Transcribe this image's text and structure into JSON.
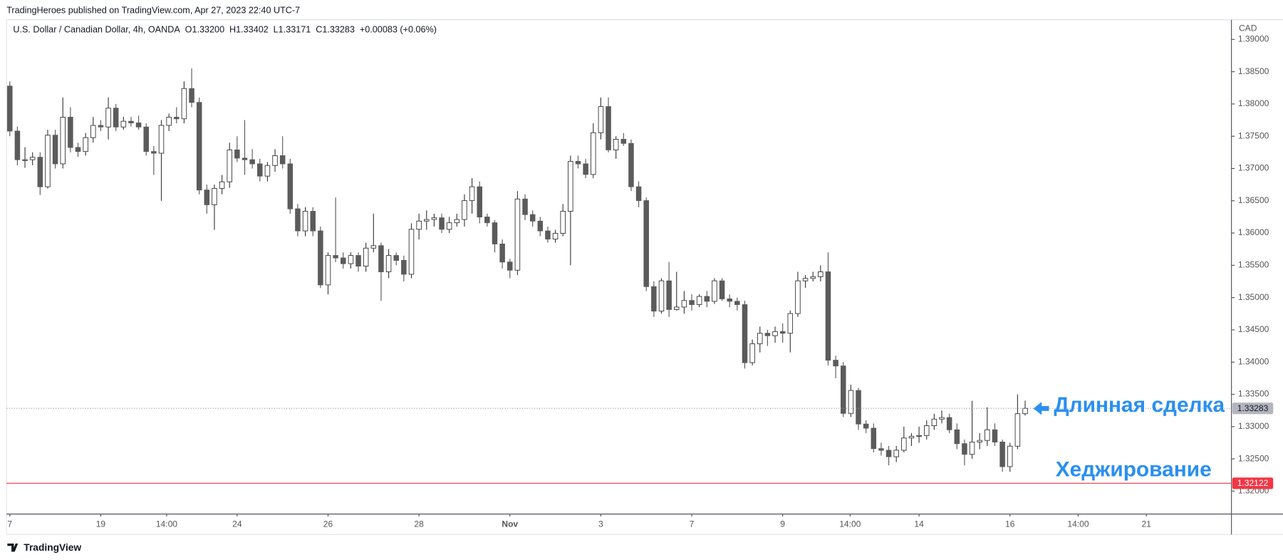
{
  "chart_data": {
    "type": "candlestick",
    "header": "TradingHeroes published on TradingView.com, Apr 27, 2023 22:40 UTC-7",
    "title": "U.S. Dollar / Canadian Dollar, 4h, OANDA",
    "ohlc_labels": {
      "open": "O1.33200",
      "high": "H1.33402",
      "low": "L1.33171",
      "close": "C1.33283",
      "change": "+0.00083 (+0.06%)"
    },
    "y_axis_label": "CAD",
    "footer": "TradingView",
    "up_color": "#ffffff",
    "down_color": "#5b5b5b",
    "edge_color": "#3a3a3a",
    "open": [
      1.38277,
      1.3758,
      1.37136,
      1.37136,
      1.37174,
      1.36717,
      1.37516,
      1.37072,
      1.37795,
      1.37326,
      1.37263,
      1.37478,
      1.37668,
      1.37643,
      1.37935,
      1.37643,
      1.37732,
      1.37706,
      1.37643,
      1.37263,
      1.37237,
      1.37668,
      1.37795,
      1.3777,
      1.38239,
      1.38024,
      1.36667,
      1.36438,
      1.36692,
      1.36793,
      1.37288,
      1.37161,
      1.37136,
      1.37072,
      1.36882,
      1.37047,
      1.37199,
      1.37072,
      1.36375,
      1.36033,
      1.36337,
      1.36033,
      1.35196,
      1.35652,
      1.35614,
      1.35525,
      1.35652,
      1.35487,
      1.35766,
      1.35804,
      1.35399,
      1.35652,
      1.35576,
      1.35361,
      1.36058,
      1.36185,
      1.3621,
      1.36236,
      1.36058,
      1.36159,
      1.3621,
      1.36502,
      1.36717,
      1.36248,
      1.36159,
      1.3583,
      1.35551,
      1.35424,
      1.36527,
      1.36286,
      1.36185,
      1.36033,
      1.35906,
      1.35995,
      1.36337,
      1.37111,
      1.37072,
      1.36908,
      1.37554,
      1.3796,
      1.37288,
      1.37453,
      1.37389,
      1.36717,
      1.36502,
      1.3517,
      1.3479,
      1.35259,
      1.34815,
      1.34853,
      1.34955,
      1.34891,
      1.35018,
      1.34942,
      1.35259,
      1.3498,
      1.34942,
      1.34891,
      1.33991,
      1.34283,
      1.34447,
      1.34409,
      1.34473,
      1.34447,
      1.34752,
      1.35259,
      1.35297,
      1.35323,
      1.35399,
      1.34029,
      1.3394,
      1.33205,
      1.3356,
      1.3304,
      1.32976,
      1.32659,
      1.32634,
      1.32533,
      1.32634,
      1.32824,
      1.3285,
      1.32862,
      1.33014,
      1.33116,
      1.33141,
      1.32951,
      1.32736,
      1.32571,
      1.32761,
      1.32786,
      1.32951,
      1.32761,
      1.3238,
      1.32697,
      1.332
    ],
    "high": [
      1.3835,
      1.3765,
      1.3733,
      1.3725,
      1.3725,
      1.376,
      1.376,
      1.381,
      1.3795,
      1.374,
      1.3755,
      1.378,
      1.3775,
      1.381,
      1.38,
      1.378,
      1.378,
      1.3782,
      1.377,
      1.3735,
      1.3775,
      1.3785,
      1.3795,
      1.3835,
      1.3855,
      1.381,
      1.3675,
      1.3675,
      1.369,
      1.374,
      1.375,
      1.3775,
      1.373,
      1.3715,
      1.371,
      1.373,
      1.375,
      1.3715,
      1.3645,
      1.364,
      1.364,
      1.361,
      1.357,
      1.3655,
      1.357,
      1.357,
      1.357,
      1.3585,
      1.363,
      1.3585,
      1.3575,
      1.357,
      1.3565,
      1.3615,
      1.363,
      1.3635,
      1.363,
      1.363,
      1.3625,
      1.363,
      1.366,
      1.3685,
      1.368,
      1.363,
      1.362,
      1.359,
      1.356,
      1.3665,
      1.366,
      1.3635,
      1.3625,
      1.361,
      1.3605,
      1.3645,
      1.372,
      1.372,
      1.3715,
      1.377,
      1.381,
      1.381,
      1.375,
      1.3755,
      1.3745,
      1.368,
      1.3655,
      1.3525,
      1.353,
      1.3555,
      1.354,
      1.351,
      1.3505,
      1.3505,
      1.351,
      1.353,
      1.353,
      1.3505,
      1.35,
      1.3495,
      1.3435,
      1.3455,
      1.345,
      1.3455,
      1.346,
      1.348,
      1.354,
      1.3535,
      1.354,
      1.355,
      1.357,
      1.341,
      1.34,
      1.3365,
      1.336,
      1.331,
      1.3305,
      1.3275,
      1.327,
      1.327,
      1.33,
      1.329,
      1.33,
      1.331,
      1.332,
      1.3325,
      1.332,
      1.3305,
      1.328,
      1.334,
      1.329,
      1.333,
      1.3305,
      1.328,
      1.3275,
      1.335,
      1.33402
    ],
    "low": [
      1.375,
      1.3705,
      1.3701,
      1.3705,
      1.3659,
      1.3669,
      1.37,
      1.37,
      1.3725,
      1.3718,
      1.372,
      1.374,
      1.3758,
      1.3745,
      1.3758,
      1.376,
      1.3765,
      1.376,
      1.372,
      1.369,
      1.365,
      1.3758,
      1.377,
      1.377,
      1.3795,
      1.366,
      1.363,
      1.3605,
      1.366,
      1.367,
      1.371,
      1.369,
      1.37,
      1.368,
      1.368,
      1.3695,
      1.37,
      1.363,
      1.3595,
      1.3595,
      1.3595,
      1.3515,
      1.3505,
      1.3555,
      1.3545,
      1.3545,
      1.354,
      1.354,
      1.357,
      1.3495,
      1.353,
      1.355,
      1.3525,
      1.353,
      1.359,
      1.3605,
      1.361,
      1.36,
      1.36,
      1.361,
      1.361,
      1.363,
      1.3615,
      1.361,
      1.357,
      1.3545,
      1.353,
      1.3535,
      1.362,
      1.361,
      1.3595,
      1.3585,
      1.3585,
      1.3595,
      1.355,
      1.37,
      1.3685,
      1.3685,
      1.3745,
      1.3725,
      1.3715,
      1.3735,
      1.3665,
      1.364,
      1.351,
      1.347,
      1.3475,
      1.347,
      1.348,
      1.3475,
      1.348,
      1.3485,
      1.3485,
      1.349,
      1.3495,
      1.3485,
      1.348,
      1.339,
      1.3395,
      1.3415,
      1.3425,
      1.343,
      1.343,
      1.3415,
      1.347,
      1.3515,
      1.3525,
      1.3525,
      1.3395,
      1.3375,
      1.3315,
      1.3315,
      1.3295,
      1.329,
      1.326,
      1.3255,
      1.324,
      1.3245,
      1.326,
      1.327,
      1.3275,
      1.328,
      1.3295,
      1.3305,
      1.329,
      1.3265,
      1.324,
      1.325,
      1.3265,
      1.327,
      1.327,
      1.323,
      1.323,
      1.3265,
      1.33171
    ],
    "close": [
      1.3758,
      1.37136,
      1.37136,
      1.37174,
      1.36717,
      1.37516,
      1.37072,
      1.37795,
      1.37326,
      1.37263,
      1.37478,
      1.37668,
      1.37643,
      1.37935,
      1.37643,
      1.37732,
      1.37706,
      1.37643,
      1.37263,
      1.37237,
      1.37668,
      1.37795,
      1.3777,
      1.38239,
      1.38024,
      1.36667,
      1.36438,
      1.36692,
      1.36793,
      1.37288,
      1.37161,
      1.37136,
      1.37072,
      1.36882,
      1.37047,
      1.37199,
      1.37072,
      1.36375,
      1.36033,
      1.36337,
      1.36033,
      1.35196,
      1.35652,
      1.35614,
      1.35525,
      1.35652,
      1.35487,
      1.35766,
      1.35804,
      1.35399,
      1.35652,
      1.35576,
      1.35361,
      1.36058,
      1.36185,
      1.3621,
      1.36236,
      1.36058,
      1.36159,
      1.3621,
      1.36502,
      1.36717,
      1.36248,
      1.36159,
      1.3583,
      1.35551,
      1.35424,
      1.36527,
      1.36286,
      1.36185,
      1.36033,
      1.35906,
      1.35995,
      1.36337,
      1.37111,
      1.37072,
      1.36908,
      1.37554,
      1.3796,
      1.37288,
      1.37453,
      1.37389,
      1.36717,
      1.36502,
      1.3517,
      1.3479,
      1.35259,
      1.34815,
      1.34853,
      1.34955,
      1.34891,
      1.35018,
      1.34942,
      1.35259,
      1.3498,
      1.34942,
      1.34891,
      1.33991,
      1.34283,
      1.34447,
      1.34409,
      1.34473,
      1.34447,
      1.34752,
      1.35259,
      1.35297,
      1.35323,
      1.35399,
      1.34029,
      1.3394,
      1.33205,
      1.3356,
      1.3304,
      1.32976,
      1.32659,
      1.32634,
      1.32533,
      1.32634,
      1.32824,
      1.3285,
      1.32862,
      1.33014,
      1.33116,
      1.33141,
      1.32951,
      1.32736,
      1.32571,
      1.32761,
      1.32786,
      1.32951,
      1.32761,
      1.3238,
      1.32697,
      1.332,
      1.33283
    ],
    "xlim": [
      -0.432,
      161.23
    ],
    "xticks": [
      {
        "value": 0,
        "label": "7"
      },
      {
        "value": 12,
        "label": "19"
      },
      {
        "value": 20.7,
        "label": "14:00"
      },
      {
        "value": 30,
        "label": "24"
      },
      {
        "value": 42,
        "label": "26"
      },
      {
        "value": 54,
        "label": "28"
      },
      {
        "value": 66,
        "label": "Nov"
      },
      {
        "value": 78,
        "label": "3"
      },
      {
        "value": 90,
        "label": "7"
      },
      {
        "value": 102,
        "label": "9"
      },
      {
        "value": 110.9,
        "label": "14:00"
      },
      {
        "value": 120,
        "label": "14"
      },
      {
        "value": 132,
        "label": "16"
      },
      {
        "value": 141,
        "label": "14:00"
      },
      {
        "value": 150,
        "label": "21"
      }
    ],
    "ylim": [
      1.31658,
      1.39292
    ],
    "yticks": [
      {
        "value": 1.32,
        "label": "1.32000"
      },
      {
        "value": 1.325,
        "label": "1.32500"
      },
      {
        "value": 1.33,
        "label": "1.33000"
      },
      {
        "value": 1.335,
        "label": "1.33500"
      },
      {
        "value": 1.34,
        "label": "1.34000"
      },
      {
        "value": 1.345,
        "label": "1.34500"
      },
      {
        "value": 1.35,
        "label": "1.35000"
      },
      {
        "value": 1.355,
        "label": "1.35500"
      },
      {
        "value": 1.36,
        "label": "1.36000"
      },
      {
        "value": 1.365,
        "label": "1.36500"
      },
      {
        "value": 1.37,
        "label": "1.37000"
      },
      {
        "value": 1.375,
        "label": "1.37500"
      },
      {
        "value": 1.38,
        "label": "1.38000"
      },
      {
        "value": 1.385,
        "label": "1.38500"
      },
      {
        "value": 1.39,
        "label": "1.39000"
      }
    ],
    "price_lines": [
      {
        "value": 1.33283,
        "label": "1.33283",
        "color": "#b2b5be",
        "text_color": "#131722",
        "dashed": true
      },
      {
        "value": 1.32122,
        "label": "1.32122",
        "color": "#f23645",
        "text_color": "#ffffff",
        "dashed": false
      }
    ],
    "annotations": [
      "Длинная сделка",
      "Хеджирование"
    ],
    "annotation_color": "#2a8ff0"
  }
}
